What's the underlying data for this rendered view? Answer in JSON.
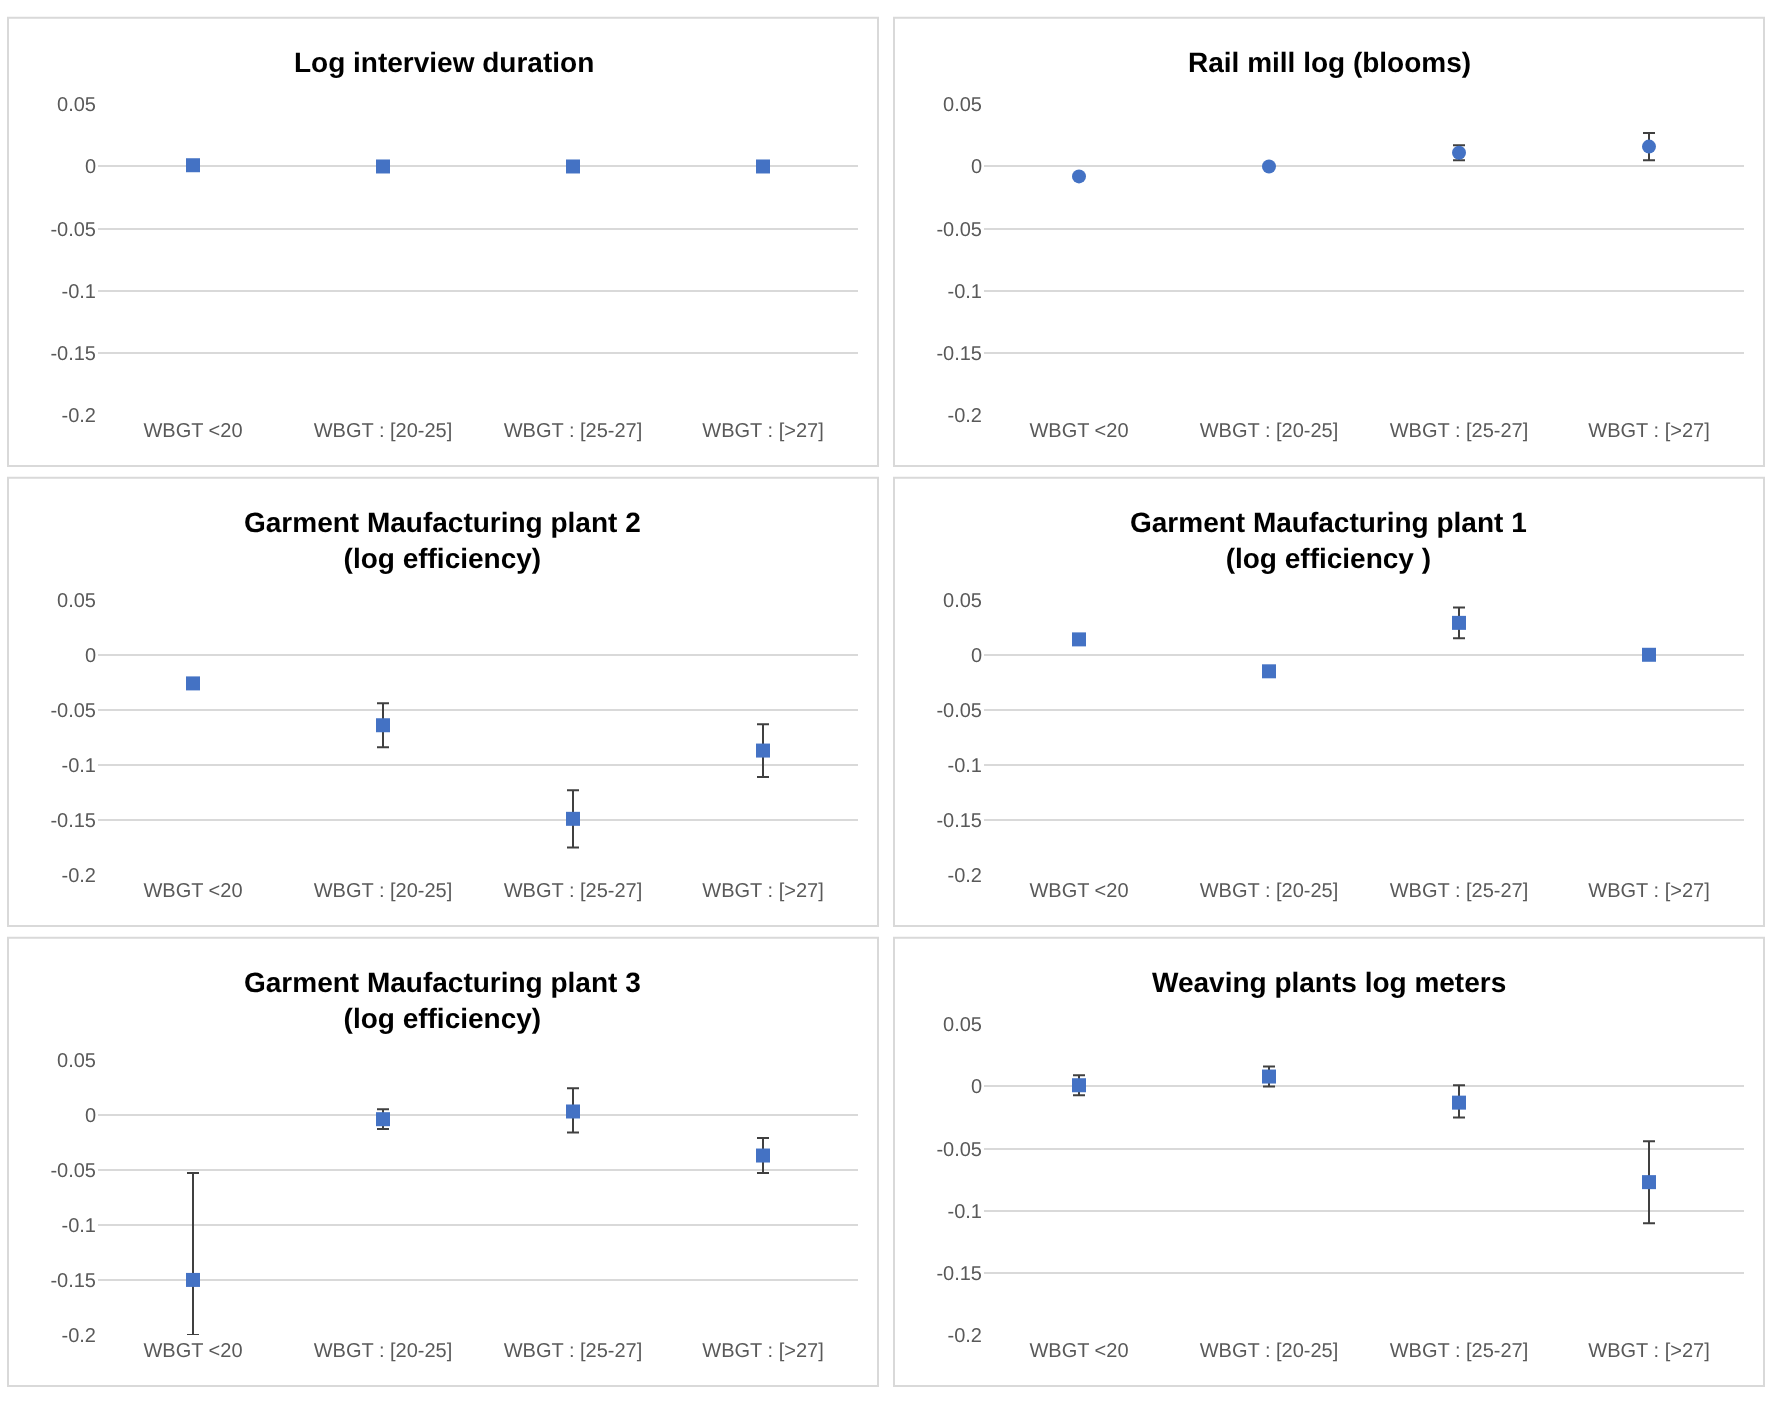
{
  "chart_data": [
    {
      "type": "scatter",
      "title": "Log interview duration",
      "categories": [
        "WBGT <20",
        "WBGT : [20-25]",
        "WBGT : [25-27]",
        "WBGT : [>27]"
      ],
      "series": [
        {
          "color": "#4472c4",
          "values": [
            0.001,
            0,
            0,
            0
          ]
        }
      ],
      "ylim": [
        -0.2,
        0.05
      ],
      "yticks": [
        {
          "value": 0.05,
          "label": "0.05"
        },
        0,
        {
          "value": -0.05,
          "label": "-0.05"
        },
        {
          "value": -0.1,
          "label": "-0.1"
        },
        {
          "value": -0.15,
          "label": "-0.15"
        },
        {
          "value": -0.2,
          "label": "-0.2"
        }
      ],
      "grid": "y",
      "marker": "square"
    },
    {
      "type": "scatter",
      "title": "Rail mill log (blooms)",
      "categories": [
        "WBGT <20",
        "WBGT : [20-25]",
        "WBGT : [25-27]",
        "WBGT : [>27]"
      ],
      "series": [
        {
          "color": "#4472c4",
          "values": [
            -0.008,
            0,
            0.011,
            0.016
          ],
          "errors": [
            null,
            null,
            [
              0.005,
              0.017
            ],
            [
              0.005,
              0.027
            ]
          ]
        }
      ],
      "ylim": [
        -0.2,
        0.05
      ],
      "yticks": [
        {
          "value": 0.05,
          "label": "0.05"
        },
        0,
        {
          "value": -0.05,
          "label": "-0.05"
        },
        {
          "value": -0.1,
          "label": "-0.1"
        },
        {
          "value": -0.15,
          "label": "-0.15"
        },
        {
          "value": -0.2,
          "label": "-0.2"
        }
      ],
      "grid": "y",
      "marker": "circle"
    },
    {
      "type": "scatter",
      "title": "Garment Maufacturing plant 2\n(log efficiency)",
      "categories": [
        "WBGT <20",
        "WBGT : [20-25]",
        "WBGT : [25-27]",
        "WBGT : [>27]"
      ],
      "series": [
        {
          "color": "#4472c4",
          "values": [
            -0.026,
            -0.064,
            -0.149,
            -0.087
          ],
          "errors": [
            null,
            [
              -0.084,
              -0.044
            ],
            [
              -0.175,
              -0.123
            ],
            [
              -0.111,
              -0.063
            ]
          ]
        }
      ],
      "ylim": [
        -0.2,
        0.05
      ],
      "yticks": [
        {
          "value": 0.05,
          "label": "0.05"
        },
        0,
        {
          "value": -0.05,
          "label": "-0.05"
        },
        {
          "value": -0.1,
          "label": "-0.1"
        },
        {
          "value": -0.15,
          "label": "-0.15"
        },
        {
          "value": -0.2,
          "label": "-0.2"
        }
      ],
      "grid": "y",
      "marker": "square"
    },
    {
      "type": "scatter",
      "title": "Garment Maufacturing plant 1\n(log efficiency )",
      "categories": [
        "WBGT <20",
        "WBGT : [20-25]",
        "WBGT : [25-27]",
        "WBGT : [>27]"
      ],
      "series": [
        {
          "color": "#4472c4",
          "values": [
            0.014,
            -0.015,
            0.029,
            0
          ],
          "errors": [
            null,
            null,
            [
              0.015,
              0.043
            ],
            null
          ]
        }
      ],
      "ylim": [
        -0.2,
        0.05
      ],
      "yticks": [
        {
          "value": 0.05,
          "label": "0.05"
        },
        0,
        {
          "value": -0.05,
          "label": "-0.05"
        },
        {
          "value": -0.1,
          "label": "-0.1"
        },
        {
          "value": -0.15,
          "label": "-0.15"
        },
        {
          "value": -0.2,
          "label": "-0.2"
        }
      ],
      "grid": "y",
      "marker": "square"
    },
    {
      "type": "scatter",
      "title": "Garment Maufacturing plant 3\n(log efficiency)",
      "categories": [
        "WBGT <20",
        "WBGT : [20-25]",
        "WBGT : [25-27]",
        "WBGT : [>27]"
      ],
      "series": [
        {
          "color": "#4472c4",
          "values": [
            -0.15,
            -0.004,
            0.003,
            -0.037
          ],
          "errors": [
            [
              -0.2,
              -0.053
            ],
            [
              -0.013,
              0.005
            ],
            [
              -0.016,
              0.024
            ],
            [
              -0.053,
              -0.021
            ]
          ]
        }
      ],
      "ylim": [
        -0.2,
        0.05
      ],
      "yticks": [
        {
          "value": 0.05,
          "label": "0.05"
        },
        0,
        {
          "value": -0.05,
          "label": "-0.05"
        },
        {
          "value": -0.1,
          "label": "-0.1"
        },
        {
          "value": -0.15,
          "label": "-0.15"
        },
        {
          "value": -0.2,
          "label": "-0.2"
        }
      ],
      "grid": "y",
      "marker": "square"
    },
    {
      "type": "scatter",
      "title": "Weaving plants log meters",
      "categories": [
        "WBGT <20",
        "WBGT : [20-25]",
        "WBGT : [25-27]",
        "WBGT : [>27]"
      ],
      "series": [
        {
          "color": "#4472c4",
          "values": [
            0.001,
            0.008,
            -0.013,
            -0.077
          ],
          "errors": [
            [
              -0.007,
              0.009
            ],
            [
              0,
              0.016
            ],
            [
              -0.025,
              0.001
            ],
            [
              -0.11,
              -0.044
            ]
          ]
        }
      ],
      "ylim": [
        -0.2,
        0.05
      ],
      "yticks": [
        {
          "value": 0.05,
          "label": "0.05"
        },
        0,
        {
          "value": -0.05,
          "label": "-0.05"
        },
        {
          "value": -0.1,
          "label": "-0.1"
        },
        {
          "value": -0.15,
          "label": "-0.15"
        },
        {
          "value": -0.2,
          "label": "-0.2"
        }
      ],
      "grid": "y",
      "marker": "square"
    }
  ]
}
